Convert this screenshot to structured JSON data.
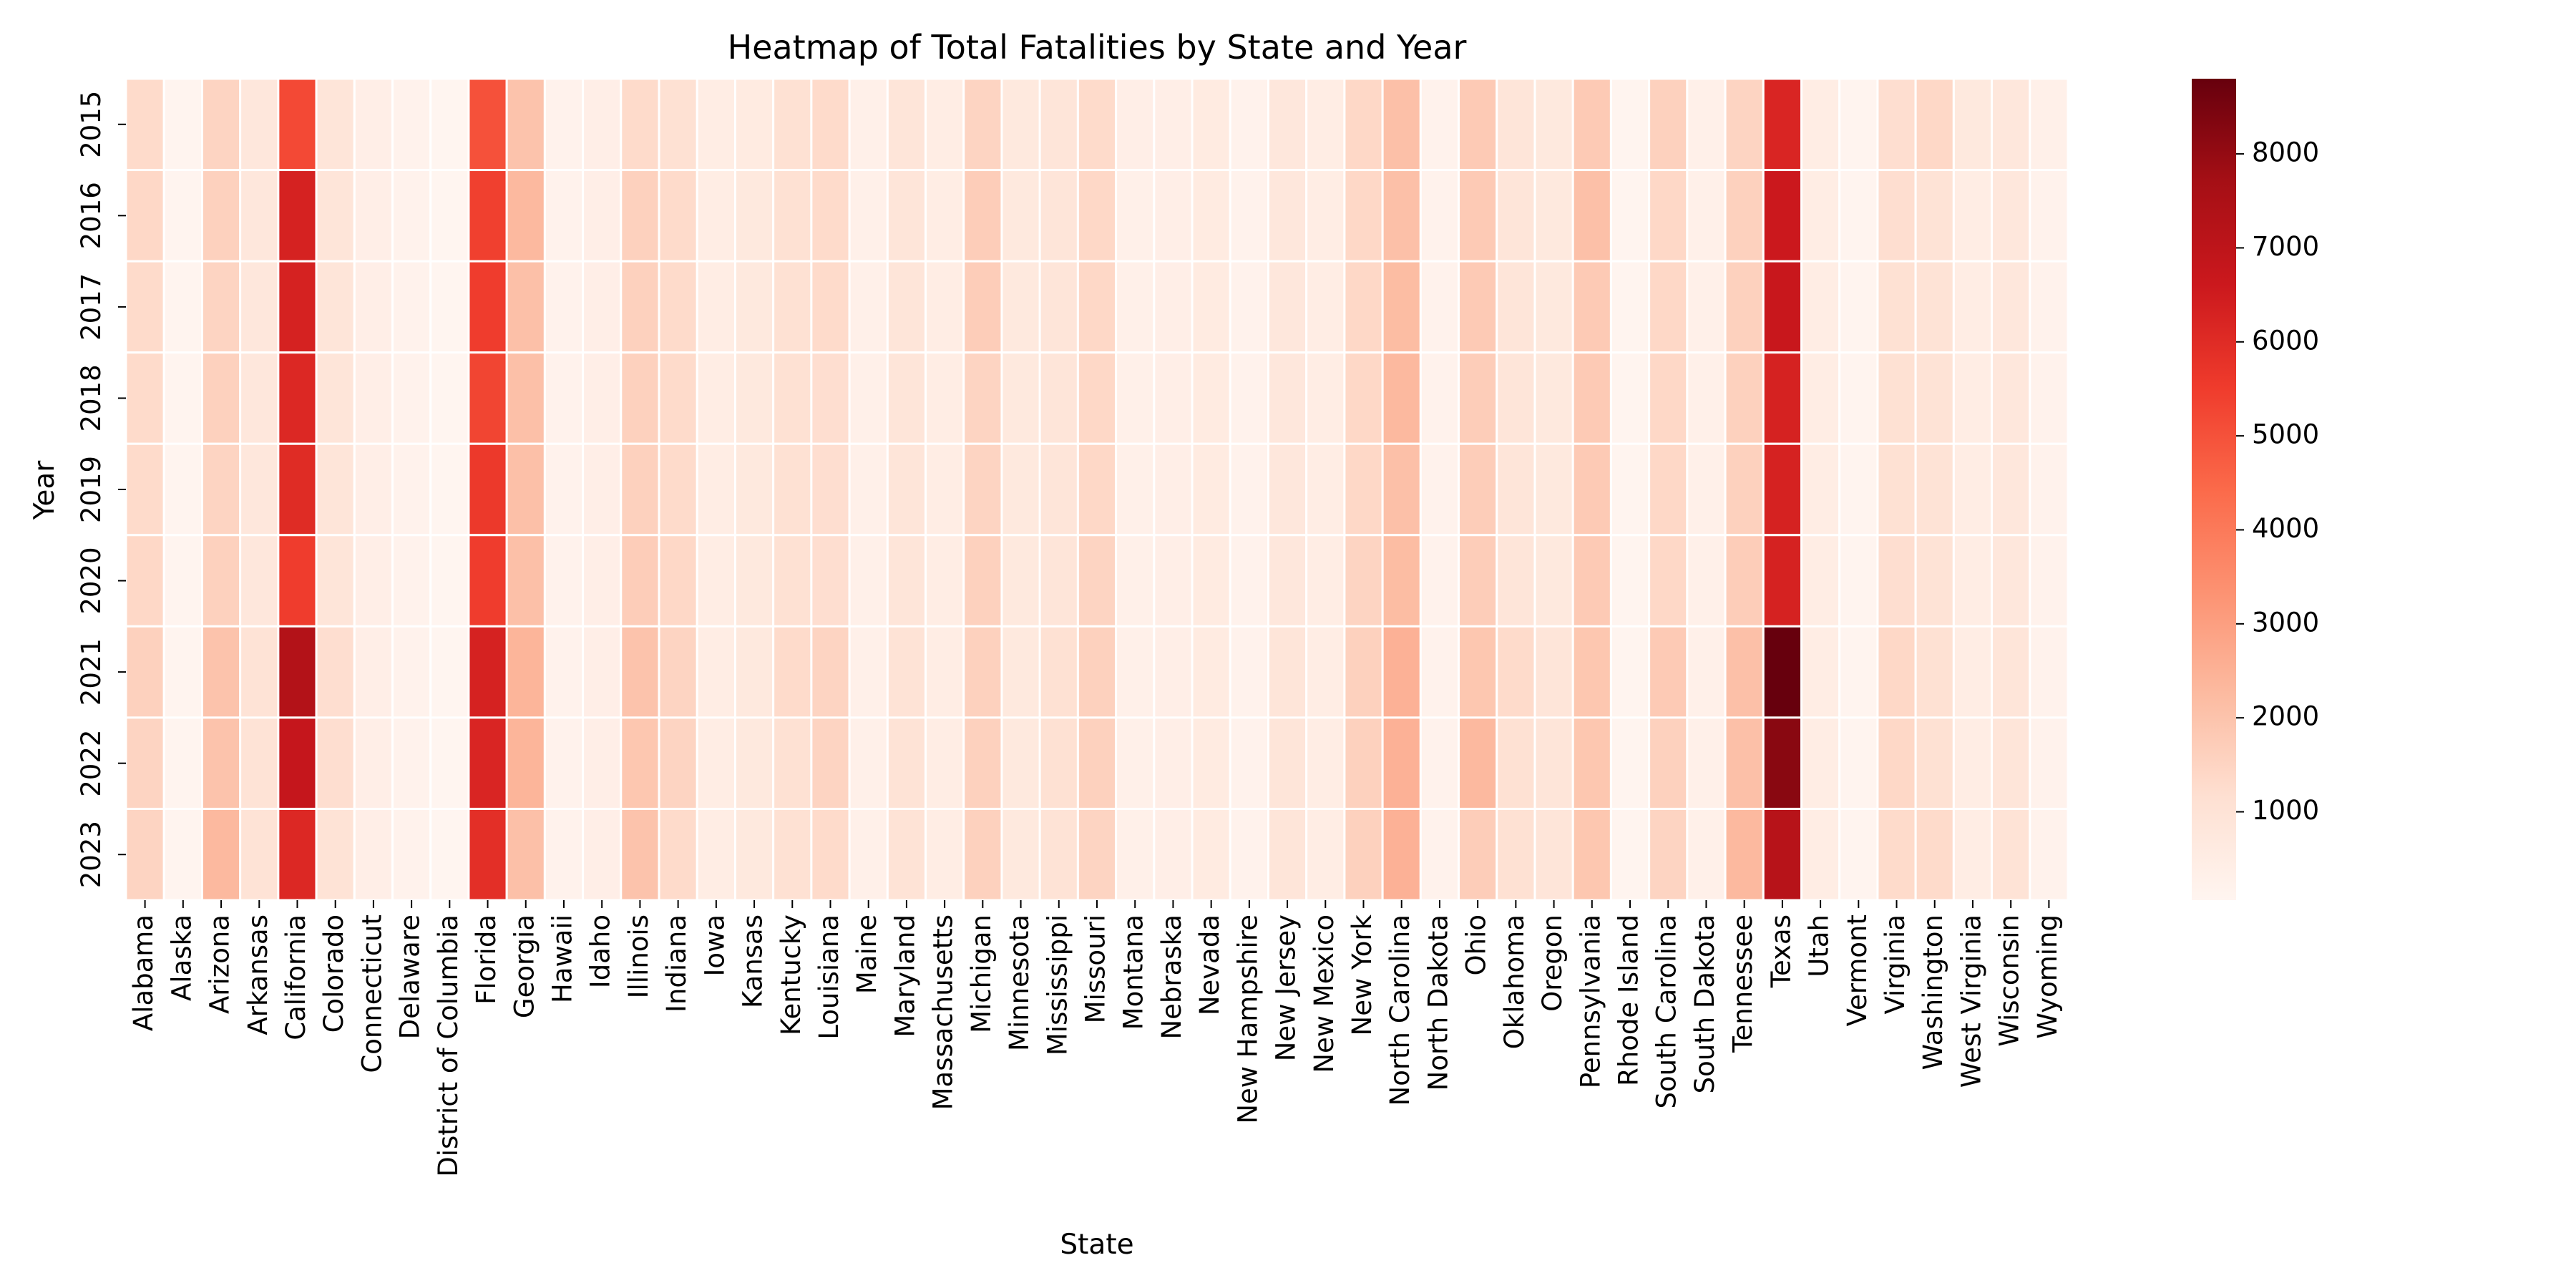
{
  "chart_data": {
    "type": "heatmap",
    "title": "Heatmap of Total Fatalities by State and Year",
    "xlabel": "State",
    "ylabel": "Year",
    "colormap": "Reds",
    "colors": [
      "#fff5f0",
      "#fee0d2",
      "#fcbba1",
      "#fc9272",
      "#fb6a4a",
      "#ef3b2c",
      "#cb181d",
      "#a50f15",
      "#67000d"
    ],
    "vmin": 60,
    "vmax": 8800,
    "colorbar_ticks": [
      1000,
      2000,
      3000,
      4000,
      5000,
      6000,
      7000,
      8000
    ],
    "states": [
      "Alabama",
      "Alaska",
      "Arizona",
      "Arkansas",
      "California",
      "Colorado",
      "Connecticut",
      "Delaware",
      "District of Columbia",
      "Florida",
      "Georgia",
      "Hawaii",
      "Idaho",
      "Illinois",
      "Indiana",
      "Iowa",
      "Kansas",
      "Kentucky",
      "Louisiana",
      "Maine",
      "Maryland",
      "Massachusetts",
      "Michigan",
      "Minnesota",
      "Mississippi",
      "Missouri",
      "Montana",
      "Nebraska",
      "Nevada",
      "New Hampshire",
      "New Jersey",
      "New Mexico",
      "New York",
      "North Carolina",
      "North Dakota",
      "Ohio",
      "Oklahoma",
      "Oregon",
      "Pennsylvania",
      "Rhode Island",
      "South Carolina",
      "South Dakota",
      "Tennessee",
      "Texas",
      "Utah",
      "Vermont",
      "Virginia",
      "Washington",
      "West Virginia",
      "Wisconsin",
      "Wyoming"
    ],
    "years": [
      "2015",
      "2016",
      "2017",
      "2018",
      "2019",
      "2020",
      "2021",
      "2022",
      "2023"
    ],
    "values": [
      [
        1300,
        100,
        1500,
        800,
        5200,
        900,
        400,
        200,
        50,
        5000,
        2000,
        200,
        400,
        1300,
        1100,
        500,
        600,
        1100,
        1300,
        300,
        900,
        500,
        1500,
        700,
        900,
        1300,
        400,
        400,
        600,
        200,
        800,
        500,
        1400,
        2100,
        200,
        1800,
        900,
        700,
        1800,
        100,
        1600,
        300,
        1500,
        6200,
        500,
        100,
        1200,
        1400,
        700,
        800,
        300
      ],
      [
        1400,
        100,
        1600,
        800,
        6300,
        900,
        400,
        200,
        50,
        5400,
        2300,
        200,
        400,
        1600,
        1300,
        500,
        700,
        1100,
        1300,
        300,
        900,
        500,
        1700,
        700,
        900,
        1400,
        300,
        400,
        600,
        200,
        800,
        500,
        1400,
        2100,
        200,
        1800,
        900,
        700,
        2100,
        100,
        1400,
        300,
        1600,
        6600,
        500,
        100,
        1200,
        1000,
        500,
        800,
        200
      ],
      [
        1300,
        100,
        1500,
        800,
        6300,
        900,
        400,
        200,
        50,
        5500,
        2100,
        200,
        400,
        1600,
        1300,
        500,
        700,
        1100,
        1300,
        300,
        900,
        500,
        1700,
        700,
        900,
        1400,
        300,
        400,
        600,
        200,
        800,
        500,
        1400,
        2200,
        200,
        1800,
        900,
        700,
        1800,
        100,
        1400,
        300,
        1600,
        6700,
        500,
        100,
        1100,
        1000,
        500,
        800,
        200
      ],
      [
        1300,
        100,
        1600,
        800,
        6100,
        900,
        400,
        200,
        50,
        5300,
        2100,
        200,
        400,
        1600,
        1300,
        500,
        700,
        1100,
        1200,
        300,
        900,
        500,
        1500,
        700,
        900,
        1400,
        300,
        400,
        600,
        200,
        800,
        500,
        1400,
        2300,
        200,
        1700,
        900,
        700,
        1800,
        100,
        1400,
        300,
        1600,
        6300,
        500,
        100,
        1100,
        1000,
        500,
        800,
        200
      ],
      [
        1300,
        100,
        1500,
        800,
        6000,
        900,
        400,
        200,
        50,
        5600,
        2100,
        200,
        400,
        1600,
        1300,
        500,
        700,
        1100,
        1200,
        300,
        900,
        500,
        1500,
        700,
        900,
        1400,
        300,
        400,
        600,
        200,
        800,
        500,
        1400,
        2100,
        200,
        1700,
        900,
        700,
        1800,
        100,
        1400,
        300,
        1600,
        6300,
        500,
        100,
        1100,
        1000,
        500,
        800,
        200
      ],
      [
        1400,
        100,
        1600,
        800,
        5500,
        900,
        400,
        200,
        50,
        5500,
        2100,
        200,
        400,
        1700,
        1400,
        500,
        700,
        1100,
        1200,
        300,
        900,
        500,
        1600,
        700,
        900,
        1500,
        300,
        400,
        600,
        200,
        800,
        500,
        1500,
        2200,
        200,
        1700,
        900,
        700,
        1800,
        100,
        1400,
        300,
        1700,
        6300,
        500,
        100,
        1200,
        1000,
        500,
        800,
        200
      ],
      [
        1600,
        100,
        2000,
        1000,
        7300,
        1200,
        400,
        200,
        50,
        6300,
        2400,
        200,
        400,
        2000,
        1500,
        500,
        700,
        1300,
        1500,
        300,
        1000,
        500,
        1600,
        700,
        1100,
        1600,
        300,
        400,
        600,
        200,
        900,
        500,
        1600,
        2500,
        200,
        1900,
        1300,
        900,
        1900,
        100,
        1800,
        300,
        2100,
        8800,
        500,
        100,
        1400,
        1100,
        500,
        900,
        200
      ],
      [
        1500,
        100,
        2000,
        1000,
        6800,
        1200,
        400,
        200,
        50,
        6200,
        2400,
        200,
        400,
        1900,
        1500,
        500,
        700,
        1100,
        1500,
        300,
        1000,
        500,
        1600,
        700,
        1100,
        1600,
        300,
        400,
        600,
        200,
        900,
        500,
        1600,
        2500,
        200,
        2300,
        1100,
        900,
        1900,
        100,
        1600,
        300,
        2100,
        8200,
        500,
        100,
        1400,
        1100,
        500,
        900,
        200
      ],
      [
        1500,
        100,
        2300,
        1000,
        6100,
        1000,
        400,
        200,
        50,
        5900,
        2100,
        200,
        400,
        2000,
        1300,
        500,
        700,
        1100,
        1300,
        300,
        1000,
        500,
        1600,
        700,
        1000,
        1500,
        300,
        400,
        600,
        200,
        900,
        500,
        1600,
        2500,
        200,
        1700,
        1100,
        900,
        1900,
        100,
        1500,
        300,
        2300,
        7200,
        500,
        100,
        1300,
        1300,
        500,
        1000,
        200
      ]
    ]
  }
}
